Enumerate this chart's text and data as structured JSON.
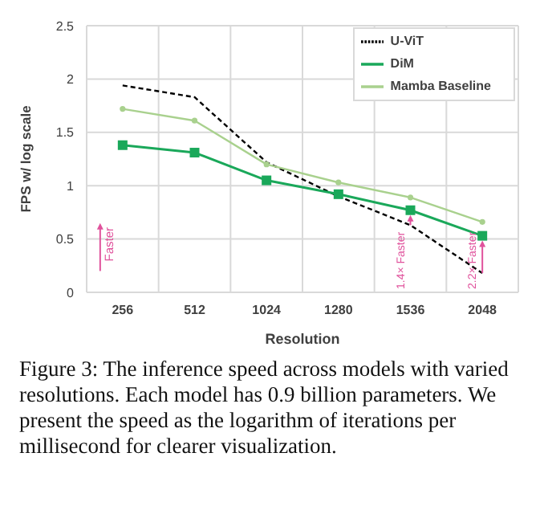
{
  "chart_data": {
    "type": "line",
    "xlabel": "Resolution",
    "ylabel": "FPS w/ log scale",
    "categories": [
      "256",
      "512",
      "1024",
      "1280",
      "1536",
      "2048"
    ],
    "series": [
      {
        "name": "U-ViT",
        "color": "#000000",
        "line_style": "dashed",
        "marker": "none",
        "values": [
          1.94,
          1.83,
          1.22,
          0.9,
          0.63,
          0.18
        ]
      },
      {
        "name": "DiM",
        "color": "#1aa85a",
        "line_style": "solid",
        "marker": "square",
        "values": [
          1.38,
          1.31,
          1.05,
          0.92,
          0.77,
          0.53
        ]
      },
      {
        "name": "Mamba Baseline",
        "color": "#a9d18e",
        "line_style": "solid",
        "marker": "circle",
        "values": [
          1.72,
          1.61,
          1.2,
          1.03,
          0.89,
          0.66
        ]
      }
    ],
    "ylim": [
      0,
      2.5
    ],
    "yticks": [
      0,
      0.5,
      1,
      1.5,
      2,
      2.5
    ],
    "grid": true,
    "legend": "top right",
    "annotations": [
      "Faster",
      {
        "text": "1.4× Faster",
        "x": "1536",
        "y": 0.77
      },
      {
        "text": "2.2× Faster",
        "x": "2048",
        "y": 0.53
      },
      "Figure 3: The inference speed across models with varied resolutions. Each model has 0.9 billion parameters. We present the speed as the logarithm of iterations per millisecond for clearer visualization."
    ]
  }
}
